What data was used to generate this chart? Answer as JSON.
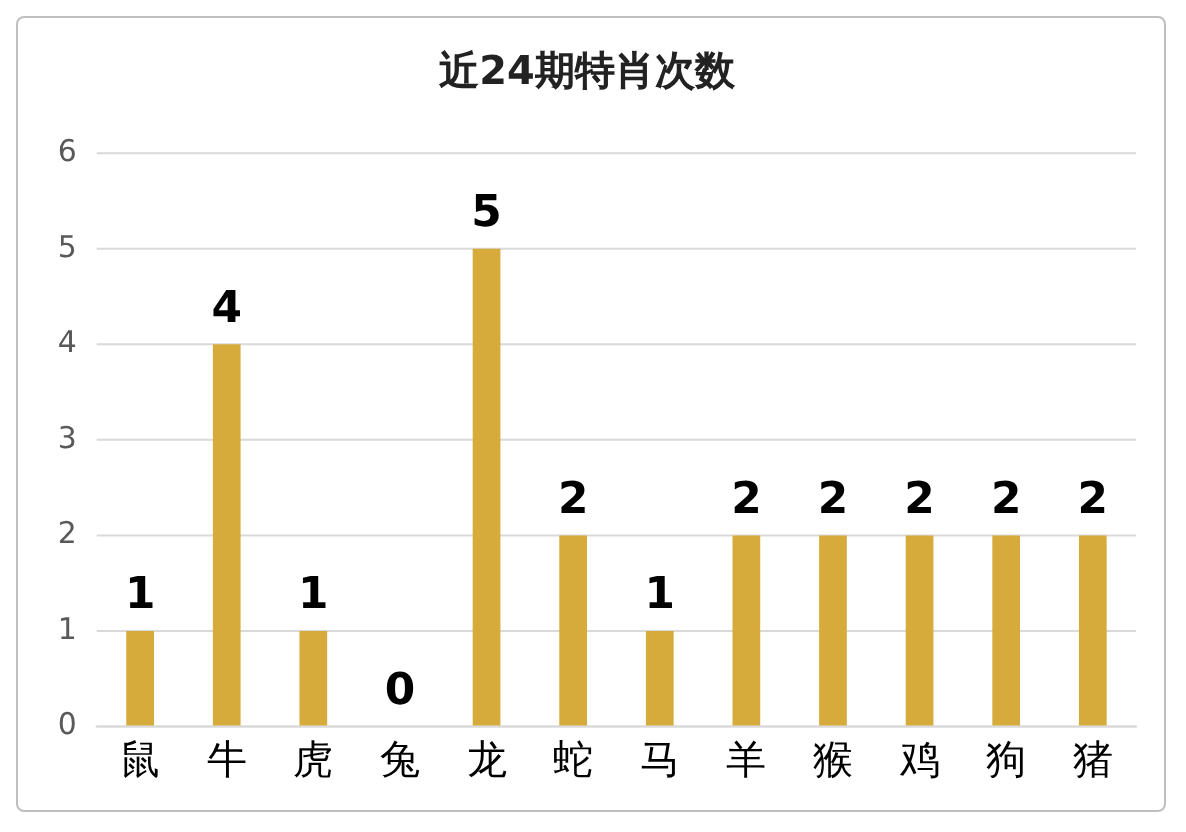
{
  "chart_data": {
    "type": "bar",
    "title": "近24期特肖次数",
    "categories": [
      "鼠",
      "牛",
      "虎",
      "兔",
      "龙",
      "蛇",
      "马",
      "羊",
      "猴",
      "鸡",
      "狗",
      "猪"
    ],
    "values": [
      1,
      4,
      1,
      0,
      5,
      2,
      1,
      2,
      2,
      2,
      2,
      2
    ],
    "color": "#d6ab3c",
    "ylim": [
      0,
      6
    ],
    "yticks": [
      0,
      1,
      2,
      3,
      4,
      5,
      6
    ],
    "grid": "y",
    "data_labels": true,
    "legend": false
  }
}
